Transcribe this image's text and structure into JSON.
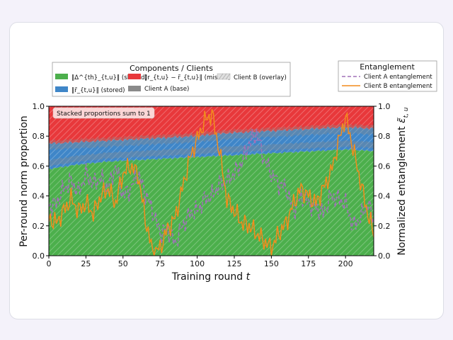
{
  "chart_data": {
    "type": "area",
    "x_label_prefix": "Training round ",
    "x_label_var": "t",
    "y_label": "Per-round norm proportion",
    "y2_label_prefix": "Normalized entanglement ",
    "y2_label_var": "ε̃",
    "y2_label_sub": "t, u",
    "xlim": [
      0,
      219
    ],
    "ylim": [
      0,
      1
    ],
    "y2lim": [
      0,
      1
    ],
    "x_ticks": [
      0,
      25,
      50,
      75,
      100,
      125,
      150,
      175,
      200
    ],
    "y_ticks": [
      "0.0",
      "0.2",
      "0.4",
      "0.6",
      "0.8",
      "1.0"
    ],
    "annotation": "Stacked proportions sum to 1",
    "legend_components": {
      "title": "Components / Clients",
      "shared_label": "‖Δ^{th}_{t,u}‖ (shared)",
      "stored_label": "‖r̃_{t,u}‖ (stored)",
      "missed_label": "‖r_{t,u} − r̃_{t,u}‖ (missed)",
      "client_a_label": "Client A (base)",
      "client_b_label": "Client B (overlay)"
    },
    "legend_entanglement": {
      "title": "Entanglement",
      "client_a_label": "Client A entanglement",
      "client_b_label": "Client B entanglement"
    },
    "stack_anchors": {
      "x": [
        0,
        20,
        40,
        60,
        80,
        100,
        120,
        140,
        160,
        180,
        200,
        219
      ],
      "shared_top": [
        0.58,
        0.61,
        0.63,
        0.64,
        0.65,
        0.66,
        0.67,
        0.68,
        0.69,
        0.7,
        0.71,
        0.7
      ],
      "stored_top": [
        0.75,
        0.76,
        0.77,
        0.78,
        0.79,
        0.8,
        0.82,
        0.83,
        0.84,
        0.85,
        0.86,
        0.85
      ],
      "missed_top": [
        1,
        1,
        1,
        1,
        1,
        1,
        1,
        1,
        1,
        1,
        1,
        1
      ]
    },
    "series": [
      {
        "name": "Client A entanglement",
        "style": "dashed",
        "x": [
          0,
          5,
          10,
          15,
          20,
          25,
          30,
          35,
          40,
          45,
          50,
          55,
          60,
          65,
          70,
          75,
          80,
          85,
          90,
          95,
          100,
          105,
          110,
          115,
          120,
          125,
          130,
          135,
          140,
          145,
          150,
          155,
          160,
          165,
          170,
          175,
          180,
          185,
          190,
          195,
          200,
          205,
          210,
          215,
          219
        ],
        "values": [
          0.33,
          0.35,
          0.45,
          0.5,
          0.42,
          0.55,
          0.48,
          0.52,
          0.45,
          0.6,
          0.4,
          0.45,
          0.55,
          0.42,
          0.3,
          0.15,
          0.18,
          0.08,
          0.2,
          0.28,
          0.3,
          0.38,
          0.4,
          0.48,
          0.5,
          0.55,
          0.62,
          0.75,
          0.82,
          0.65,
          0.55,
          0.48,
          0.45,
          0.3,
          0.4,
          0.35,
          0.32,
          0.28,
          0.4,
          0.38,
          0.35,
          0.2,
          0.25,
          0.35,
          0.25
        ]
      },
      {
        "name": "Client B entanglement",
        "style": "solid",
        "x": [
          0,
          5,
          10,
          15,
          20,
          25,
          30,
          35,
          40,
          45,
          50,
          55,
          60,
          65,
          70,
          75,
          80,
          85,
          90,
          95,
          100,
          105,
          110,
          115,
          120,
          125,
          130,
          135,
          140,
          145,
          150,
          155,
          160,
          165,
          170,
          175,
          180,
          185,
          190,
          195,
          200,
          205,
          210,
          215,
          219
        ],
        "values": [
          0.25,
          0.22,
          0.3,
          0.38,
          0.3,
          0.35,
          0.28,
          0.4,
          0.45,
          0.35,
          0.55,
          0.6,
          0.55,
          0.25,
          0.02,
          0.05,
          0.18,
          0.25,
          0.45,
          0.65,
          0.78,
          0.9,
          0.95,
          0.7,
          0.38,
          0.3,
          0.22,
          0.2,
          0.15,
          0.1,
          0.05,
          0.15,
          0.22,
          0.35,
          0.45,
          0.4,
          0.35,
          0.45,
          0.55,
          0.75,
          0.93,
          0.72,
          0.5,
          0.28,
          0.15
        ]
      }
    ],
    "colors": {
      "shared": "#4caf4c",
      "stored": "#3f86c8",
      "missed": "#e8383b",
      "client_a_base": "#8a8a8a",
      "client_a_line": "#a070b8",
      "client_b_line": "#f28c1c"
    }
  }
}
